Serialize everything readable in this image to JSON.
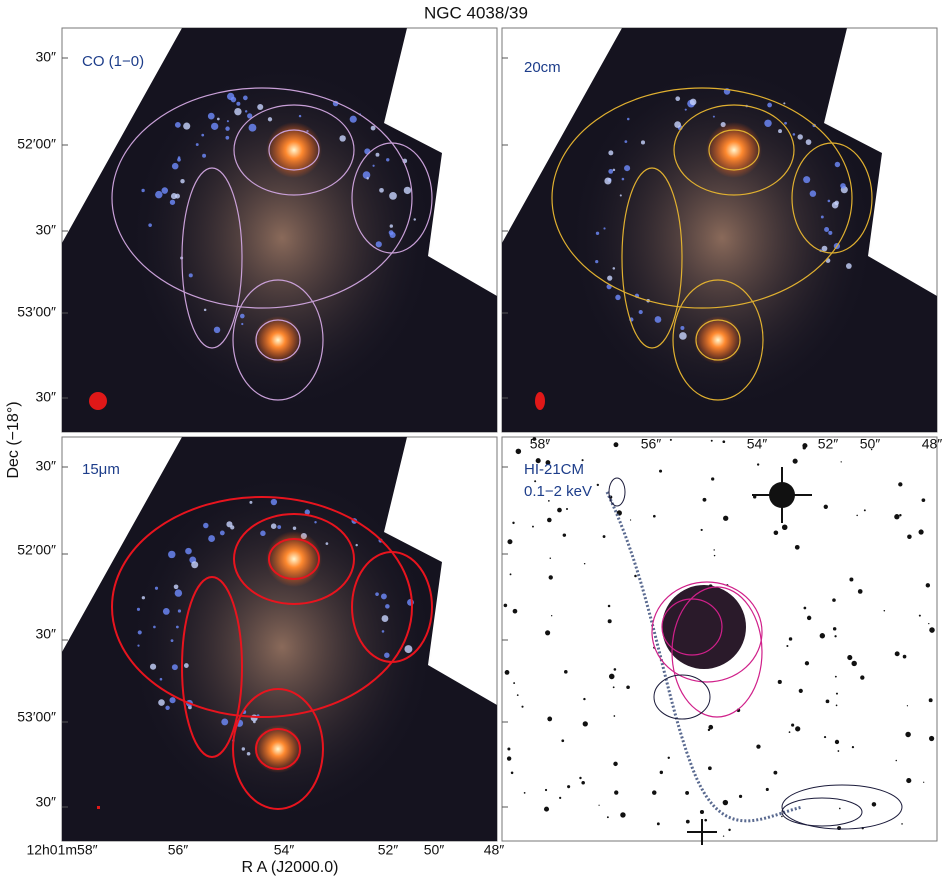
{
  "title": "NGC 4038/39",
  "panels": [
    {
      "label": "CO (1−0)"
    },
    {
      "label": "20cm"
    },
    {
      "label": "15μm"
    },
    {
      "label": "HI-21CM",
      "sublabel": "0.1−2 keV"
    }
  ],
  "y_ticks_top": [
    "30″",
    "52′00″",
    "30″",
    "53′00″",
    "30″"
  ],
  "y_ticks_bottom": [
    "30″",
    "52′00″",
    "30″",
    "53′00″",
    "30″"
  ],
  "x_ticks_bottom": [
    "12h01m58″",
    "56″",
    "54″",
    "52″",
    "50″",
    "48″"
  ],
  "x_ticks_inner": [
    "58″",
    "56″",
    "54″",
    "52″",
    "50″",
    "48″"
  ],
  "x_axis_label": "R A (J2000.0)",
  "y_axis_label": "Dec (−18°)"
}
